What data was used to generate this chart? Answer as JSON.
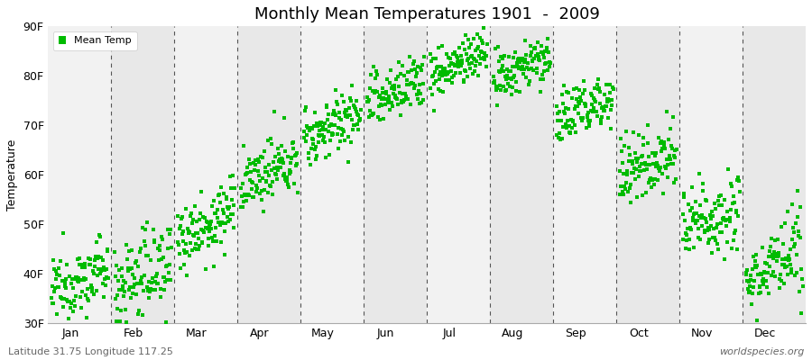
{
  "title": "Monthly Mean Temperatures 1901  -  2009",
  "ylabel": "Temperature",
  "subtitle_left": "Latitude 31.75 Longitude 117.25",
  "subtitle_right": "worldspecies.org",
  "legend_label": "Mean Temp",
  "dot_color": "#00bb00",
  "bg_light": "#f2f2f2",
  "bg_dark": "#e8e8e8",
  "ylim": [
    30,
    90
  ],
  "yticks": [
    30,
    40,
    50,
    60,
    70,
    80,
    90
  ],
  "ytick_labels": [
    "30F",
    "40F",
    "50F",
    "60F",
    "70F",
    "80F",
    "90F"
  ],
  "months": [
    "Jan",
    "Feb",
    "Mar",
    "Apr",
    "May",
    "Jun",
    "Jul",
    "Aug",
    "Sep",
    "Oct",
    "Nov",
    "Dec"
  ],
  "n_years": 109,
  "mean_temps_F": [
    38.5,
    40.0,
    50.0,
    60.5,
    70.0,
    77.0,
    82.5,
    81.5,
    73.5,
    62.5,
    51.5,
    41.5
  ],
  "std_temps_F": [
    3.5,
    4.5,
    3.5,
    3.0,
    3.0,
    3.0,
    2.5,
    2.5,
    3.0,
    3.5,
    4.0,
    4.0
  ],
  "warming_trend": 0.05
}
